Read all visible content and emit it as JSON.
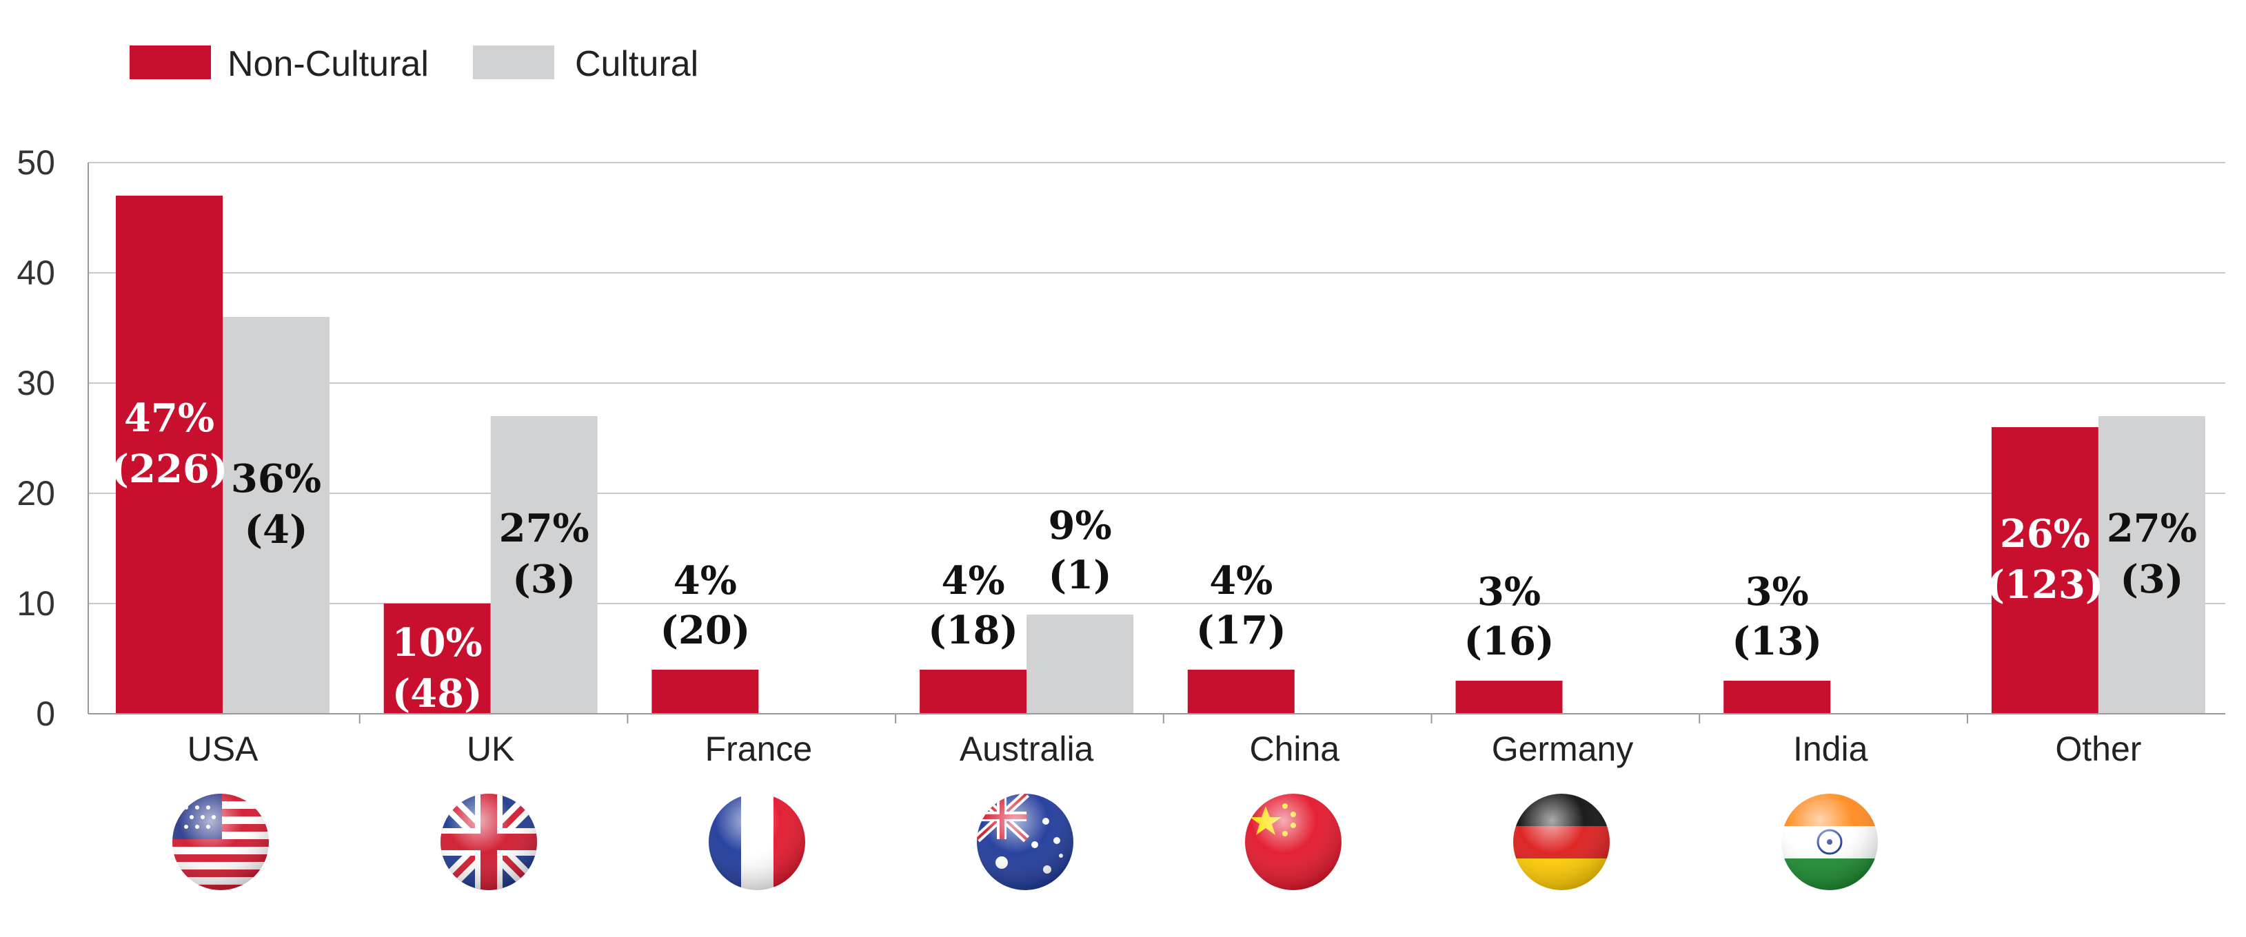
{
  "colors": {
    "non_cultural": "#c8102e",
    "cultural": "#d1d2d4",
    "grid": "#c8c8c8",
    "axis": "#999999"
  },
  "legend": [
    {
      "label": "Non-Cultural",
      "color": "#c8102e"
    },
    {
      "label": "Cultural",
      "color": "#d1d2d4"
    }
  ],
  "chart_data": {
    "type": "bar",
    "categories": [
      "USA",
      "UK",
      "France",
      "Australia",
      "China",
      "Germany",
      "India",
      "Other"
    ],
    "series": [
      {
        "name": "Non-Cultural",
        "values": [
          47,
          10,
          4,
          4,
          4,
          3,
          3,
          26
        ],
        "labels": [
          [
            "47%",
            "(226)"
          ],
          [
            "10%",
            "(48)"
          ],
          [
            "4%",
            "(20)"
          ],
          [
            "4%",
            "(18)"
          ],
          [
            "4%",
            "(17)"
          ],
          [
            "3%",
            "(16)"
          ],
          [
            "3%",
            "(13)"
          ],
          [
            "26%",
            "(123)"
          ]
        ],
        "label_inside": [
          true,
          true,
          false,
          false,
          false,
          false,
          false,
          true
        ]
      },
      {
        "name": "Cultural",
        "values": [
          36,
          27,
          0,
          9,
          0,
          0,
          0,
          27
        ],
        "labels": [
          [
            "36%",
            "(4)"
          ],
          [
            "27%",
            "(3)"
          ],
          null,
          [
            "9%",
            "(1)"
          ],
          null,
          null,
          null,
          [
            "27%",
            "(3)"
          ]
        ],
        "label_inside": [
          true,
          true,
          false,
          false,
          false,
          false,
          false,
          true
        ]
      }
    ],
    "yticks": [
      0,
      10,
      20,
      30,
      40,
      50
    ],
    "ylim": [
      0,
      50
    ],
    "grid": true,
    "legend_position": "top-left",
    "flag_icons": [
      "usa-flag-icon",
      "uk-flag-icon",
      "france-flag-icon",
      "australia-flag-icon",
      "china-flag-icon",
      "germany-flag-icon",
      "india-flag-icon",
      null
    ]
  }
}
